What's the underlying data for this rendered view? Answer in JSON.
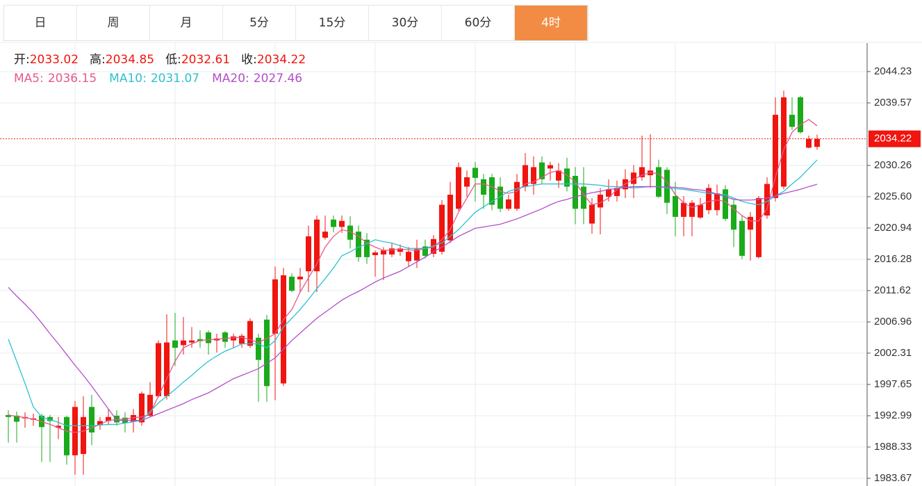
{
  "tabs": [
    "日",
    "周",
    "月",
    "5分",
    "15分",
    "30分",
    "60分",
    "4时"
  ],
  "active_tab": 7,
  "chart_data": {
    "type": "candlestick",
    "header": {
      "open_label": "开:",
      "high_label": "高:",
      "low_label": "低:",
      "close_label": "收:"
    },
    "up_color": "#f0150f",
    "down_color": "#1aaa1a",
    "candles": [
      [
        1993.1,
        1993.8,
        1989.0,
        1992.8
      ],
      [
        1993.0,
        1993.6,
        1989.0,
        1992.1
      ],
      [
        1992.6,
        1993.5,
        1991.2,
        1992.8
      ],
      [
        1992.4,
        1993.3,
        1991.5,
        1992.6
      ],
      [
        1993.0,
        1993.3,
        1986.1,
        1991.3
      ],
      [
        1992.8,
        1993.1,
        1986.1,
        1992.2
      ],
      [
        1991.2,
        1992.8,
        1989.5,
        1991.5
      ],
      [
        1992.8,
        1993.0,
        1985.7,
        1987.1
      ],
      [
        1987.1,
        1995.2,
        1984.2,
        1994.3
      ],
      [
        1987.3,
        1995.9,
        1984.2,
        1992.8
      ],
      [
        1994.3,
        1996.1,
        1988.6,
        1990.5
      ],
      [
        1991.6,
        1992.8,
        1990.9,
        1992.2
      ],
      [
        1992.2,
        1994.0,
        1991.6,
        1992.8
      ],
      [
        1993.0,
        1993.8,
        1991.5,
        1992.0
      ],
      [
        1992.7,
        1993.5,
        1990.5,
        1991.9
      ],
      [
        1992.1,
        1994.0,
        1990.5,
        1993.1
      ],
      [
        1992.0,
        1996.6,
        1991.5,
        1996.3
      ],
      [
        1993.0,
        1998.0,
        1992.8,
        1996.1
      ],
      [
        1995.9,
        2004.2,
        1995.7,
        2003.8
      ],
      [
        1995.9,
        2008.1,
        1995.4,
        2003.9
      ],
      [
        2004.2,
        2008.3,
        2000.4,
        2003.1
      ],
      [
        2003.5,
        2007.7,
        2002.1,
        2004.2
      ],
      [
        2003.9,
        2006.2,
        2003.1,
        2004.2
      ],
      [
        2004.4,
        2005.7,
        2003.1,
        2004.1
      ],
      [
        2005.4,
        2005.7,
        2002.1,
        2003.8
      ],
      [
        2004.2,
        2005.2,
        2002.4,
        2004.5
      ],
      [
        2005.4,
        2005.6,
        2003.1,
        2004.0
      ],
      [
        2004.2,
        2005.2,
        2003.1,
        2004.8
      ],
      [
        2003.7,
        2005.2,
        2003.1,
        2004.9
      ],
      [
        2003.4,
        2007.5,
        2003.1,
        2007.1
      ],
      [
        2004.6,
        2005.2,
        1995.1,
        2001.3
      ],
      [
        2007.3,
        2008.0,
        1995.1,
        1997.4
      ],
      [
        2005.2,
        2015.2,
        1995.3,
        2013.3
      ],
      [
        1997.8,
        2015.0,
        1997.4,
        2013.9
      ],
      [
        2013.7,
        2014.2,
        2011.4,
        2011.6
      ],
      [
        2013.3,
        2015.0,
        2011.4,
        2013.7
      ],
      [
        2014.5,
        2021.3,
        2011.4,
        2019.7
      ],
      [
        2014.5,
        2022.8,
        2011.4,
        2022.2
      ],
      [
        2019.5,
        2022.8,
        2019.2,
        2020.4
      ],
      [
        2022.2,
        2022.8,
        2020.3,
        2021.1
      ],
      [
        2021.1,
        2022.8,
        2020.2,
        2022.0
      ],
      [
        2021.3,
        2022.7,
        2017.9,
        2019.2
      ],
      [
        2020.4,
        2021.3,
        2015.9,
        2016.6
      ],
      [
        2019.2,
        2020.2,
        2015.6,
        2016.6
      ],
      [
        2016.9,
        2017.6,
        2013.7,
        2017.3
      ],
      [
        2017.0,
        2018.1,
        2013.2,
        2017.6
      ],
      [
        2017.0,
        2018.7,
        2016.6,
        2017.9
      ],
      [
        2017.4,
        2018.5,
        2016.8,
        2017.9
      ],
      [
        2016.0,
        2018.1,
        2015.2,
        2017.4
      ],
      [
        2016.1,
        2019.2,
        2015.0,
        2017.8
      ],
      [
        2018.2,
        2019.2,
        2016.4,
        2016.8
      ],
      [
        2017.1,
        2019.9,
        2016.6,
        2019.3
      ],
      [
        2017.4,
        2025.1,
        2017.0,
        2024.4
      ],
      [
        2019.1,
        2027.8,
        2018.7,
        2025.9
      ],
      [
        2023.8,
        2030.7,
        2023.5,
        2030.0
      ],
      [
        2027.1,
        2029.5,
        2025.6,
        2028.5
      ],
      [
        2029.9,
        2030.8,
        2024.9,
        2028.4
      ],
      [
        2028.2,
        2029.0,
        2023.8,
        2025.9
      ],
      [
        2028.5,
        2029.0,
        2023.6,
        2024.4
      ],
      [
        2027.1,
        2028.5,
        2023.3,
        2023.8
      ],
      [
        2023.8,
        2025.9,
        2023.5,
        2025.2
      ],
      [
        2023.8,
        2029.0,
        2023.5,
        2027.8
      ],
      [
        2027.1,
        2032.1,
        2026.4,
        2030.3
      ],
      [
        2027.5,
        2031.6,
        2025.9,
        2030.0
      ],
      [
        2030.7,
        2031.6,
        2027.5,
        2028.2
      ],
      [
        2029.8,
        2030.8,
        2028.0,
        2030.3
      ],
      [
        2028.0,
        2030.6,
        2026.9,
        2029.5
      ],
      [
        2029.8,
        2031.4,
        2026.4,
        2027.1
      ],
      [
        2028.7,
        2030.0,
        2021.5,
        2023.8
      ],
      [
        2027.1,
        2030.0,
        2021.5,
        2023.8
      ],
      [
        2021.6,
        2025.4,
        2020.1,
        2024.4
      ],
      [
        2024.0,
        2026.9,
        2020.0,
        2025.9
      ],
      [
        2025.6,
        2028.2,
        2024.9,
        2026.7
      ],
      [
        2025.7,
        2028.0,
        2024.9,
        2026.9
      ],
      [
        2026.7,
        2029.7,
        2025.4,
        2028.2
      ],
      [
        2027.5,
        2030.3,
        2025.4,
        2029.2
      ],
      [
        2028.5,
        2034.7,
        2028.0,
        2030.0
      ],
      [
        2028.8,
        2034.9,
        2026.9,
        2029.5
      ],
      [
        2030.0,
        2031.1,
        2025.4,
        2025.6
      ],
      [
        2029.6,
        2030.0,
        2023.0,
        2024.7
      ],
      [
        2025.7,
        2027.8,
        2019.7,
        2022.6
      ],
      [
        2022.6,
        2025.7,
        2019.7,
        2024.7
      ],
      [
        2022.6,
        2025.1,
        2019.7,
        2024.7
      ],
      [
        2022.5,
        2025.4,
        2022.3,
        2024.4
      ],
      [
        2023.6,
        2027.5,
        2023.0,
        2026.9
      ],
      [
        2023.6,
        2027.4,
        2022.8,
        2026.1
      ],
      [
        2026.7,
        2027.3,
        2022.0,
        2022.3
      ],
      [
        2024.4,
        2025.1,
        2018.1,
        2020.7
      ],
      [
        2022.0,
        2022.8,
        2016.3,
        2016.8
      ],
      [
        2020.7,
        2023.3,
        2016.1,
        2022.6
      ],
      [
        2016.6,
        2025.7,
        2016.4,
        2025.4
      ],
      [
        2022.8,
        2028.5,
        2022.3,
        2027.5
      ],
      [
        2025.4,
        2040.4,
        2024.9,
        2037.8
      ],
      [
        2027.1,
        2041.4,
        2026.7,
        2040.4
      ],
      [
        2037.8,
        2040.4,
        2035.5,
        2036.0
      ],
      [
        2040.4,
        2040.6,
        2035.0,
        2035.2
      ],
      [
        2032.9,
        2034.7,
        2032.8,
        2034.2
      ],
      [
        2033.02,
        2034.85,
        2032.61,
        2034.22
      ]
    ],
    "series": [
      {
        "name": "MA5:",
        "color": "#e7588d",
        "values": [
          1993.1,
          1992.9,
          1992.7,
          1992.5,
          1992.1,
          1991.7,
          1991.2,
          1990.7,
          1990.5,
          1990.7,
          1991.2,
          1991.7,
          1992.3,
          1992.4,
          1992.5,
          1992.7,
          1992.8,
          1993.3,
          1995.9,
          1998.5,
          2001.1,
          2003.1,
          2003.7,
          2004.2,
          2004.3,
          2004.4,
          2004.5,
          2004.6,
          2004.7,
          2004.3,
          2003.9,
          2004.5,
          2005.2,
          2007.3,
          2008.8,
          2011.4,
          2013.5,
          2015.6,
          2018.1,
          2019.7,
          2020.7,
          2020.4,
          2019.7,
          2018.7,
          2018.1,
          2017.6,
          2017.7,
          2017.8,
          2017.7,
          2017.6,
          2017.9,
          2018.1,
          2019.2,
          2020.7,
          2023.3,
          2025.4,
          2027.5,
          2027.5,
          2027.1,
          2026.4,
          2026.1,
          2026.4,
          2027.5,
          2027.8,
          2028.5,
          2029.2,
          2029.5,
          2028.8,
          2027.8,
          2025.9,
          2024.4,
          2024.7,
          2025.4,
          2026.7,
          2027.5,
          2028.2,
          2028.8,
          2029.2,
          2029.0,
          2027.8,
          2025.9,
          2024.7,
          2024.0,
          2024.4,
          2024.9,
          2025.1,
          2024.9,
          2023.8,
          2022.8,
          2022.0,
          2022.0,
          2023.8,
          2028.5,
          2032.6,
          2035.2,
          2036.3,
          2037.1,
          2036.15
        ]
      },
      {
        "name": "MA10:",
        "color": "#2ec0cf",
        "values": [
          2004.4,
          2001.1,
          1997.8,
          1994.3,
          1992.8,
          1992.4,
          1992.0,
          1991.5,
          1991.5,
          1991.5,
          1991.5,
          1991.6,
          1991.7,
          1991.7,
          1991.9,
          1992.1,
          1992.3,
          1993.6,
          1994.9,
          1995.9,
          1996.9,
          1998.0,
          1999.0,
          2000.1,
          2001.1,
          2001.9,
          2002.6,
          2003.1,
          2003.7,
          2003.7,
          2003.7,
          2003.1,
          2004.2,
          2006.2,
          2007.5,
          2008.8,
          2010.3,
          2011.9,
          2013.4,
          2015.0,
          2016.8,
          2017.4,
          2018.1,
          2018.6,
          2019.2,
          2018.9,
          2018.7,
          2018.3,
          2017.9,
          2017.9,
          2017.9,
          2018.3,
          2018.7,
          2019.7,
          2020.7,
          2022.0,
          2023.3,
          2024.1,
          2024.9,
          2025.6,
          2026.4,
          2026.8,
          2027.1,
          2027.3,
          2027.5,
          2027.5,
          2027.5,
          2027.5,
          2027.5,
          2027.5,
          2027.4,
          2027.3,
          2027.1,
          2027.1,
          2027.0,
          2026.9,
          2027.0,
          2027.1,
          2027.1,
          2026.9,
          2026.8,
          2026.7,
          2026.5,
          2026.3,
          2026.1,
          2026.0,
          2025.9,
          2025.4,
          2024.9,
          2024.6,
          2024.4,
          2024.9,
          2025.7,
          2026.4,
          2027.5,
          2028.5,
          2029.8,
          2031.07
        ]
      },
      {
        "name": "MA20:",
        "color": "#b24fc8",
        "values": [
          2012.1,
          2010.8,
          2009.6,
          2008.3,
          2006.8,
          2005.2,
          2003.7,
          2002.1,
          2000.5,
          1999.0,
          1997.4,
          1995.7,
          1994.0,
          1992.3,
          1992.3,
          1992.3,
          1992.3,
          1992.8,
          1993.3,
          1993.8,
          1994.3,
          1994.8,
          1995.4,
          1995.9,
          1996.4,
          1997.1,
          1997.8,
          1998.5,
          1999.0,
          1999.5,
          2000.0,
          2000.8,
          2001.6,
          2002.9,
          2004.2,
          2005.3,
          2006.4,
          2007.5,
          2008.4,
          2009.3,
          2010.2,
          2010.9,
          2011.5,
          2012.2,
          2012.9,
          2013.5,
          2014.0,
          2014.5,
          2015.2,
          2015.9,
          2016.6,
          2017.4,
          2018.1,
          2018.9,
          2019.7,
          2020.3,
          2020.9,
          2021.1,
          2021.3,
          2021.5,
          2021.9,
          2022.3,
          2022.8,
          2023.3,
          2023.8,
          2024.4,
          2024.9,
          2025.2,
          2025.6,
          2025.9,
          2026.2,
          2026.4,
          2026.7,
          2026.8,
          2027.0,
          2027.1,
          2027.1,
          2027.1,
          2027.1,
          2027.0,
          2027.0,
          2026.9,
          2026.7,
          2026.6,
          2026.4,
          2026.0,
          2025.6,
          2025.2,
          2025.1,
          2025.1,
          2025.2,
          2025.4,
          2025.7,
          2026.1,
          2026.4,
          2026.7,
          2027.1,
          2027.46
        ]
      }
    ],
    "ylim": [
      1982.53,
      2048.47
    ],
    "yticks": [
      2044.23,
      2039.57,
      2030.26,
      {
        "value": 2025.6,
        "label": "2025.60"
      },
      2020.94,
      2016.28,
      2011.62,
      2006.96,
      2002.31,
      1997.65,
      1992.99,
      1988.33,
      1983.67
    ],
    "grid": true,
    "last_price_line": true
  }
}
